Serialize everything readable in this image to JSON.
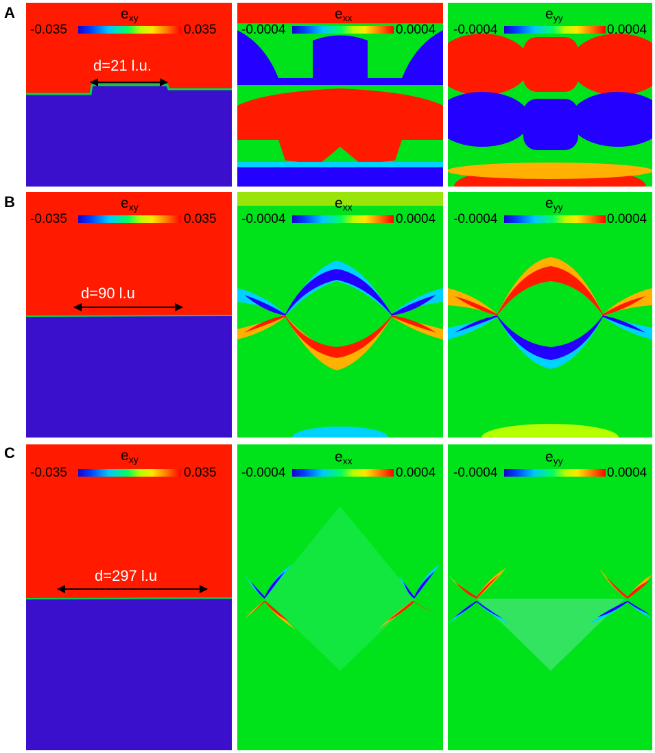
{
  "figure": {
    "rows": [
      {
        "letter": "A",
        "distance_label": "d=21 l.u.",
        "exy": {
          "symbol": "e",
          "sub": "xy",
          "min": "-0.035",
          "max": "0.035"
        },
        "exx": {
          "symbol": "e",
          "sub": "xx",
          "min": "-0.0004",
          "max": "0.0004"
        },
        "eyy": {
          "symbol": "e",
          "sub": "yy",
          "min": "-0.0004",
          "max": "0.0004"
        }
      },
      {
        "letter": "B",
        "distance_label": "d=90 l.u",
        "exy": {
          "symbol": "e",
          "sub": "xy",
          "min": "-0.035",
          "max": "0.035"
        },
        "exx": {
          "symbol": "e",
          "sub": "xx",
          "min": "-0.0004",
          "max": "0.0004"
        },
        "eyy": {
          "symbol": "e",
          "sub": "yy",
          "min": "-0.0004",
          "max": "0.0004"
        }
      },
      {
        "letter": "C",
        "distance_label": "d=297 l.u",
        "exy": {
          "symbol": "e",
          "sub": "xy",
          "min": "-0.035",
          "max": "0.035"
        },
        "exx": {
          "symbol": "e",
          "sub": "xx",
          "min": "-0.0004",
          "max": "0.0004"
        },
        "eyy": {
          "symbol": "e",
          "sub": "yy",
          "min": "-0.0004",
          "max": "0.0004"
        }
      }
    ],
    "colors": {
      "red": "#ff1a00",
      "blue": "#3a10cc",
      "green": "#00e31b",
      "deep_blue": "#2400ff",
      "cyan": "#00d2ff",
      "orange": "#ffb000"
    }
  }
}
